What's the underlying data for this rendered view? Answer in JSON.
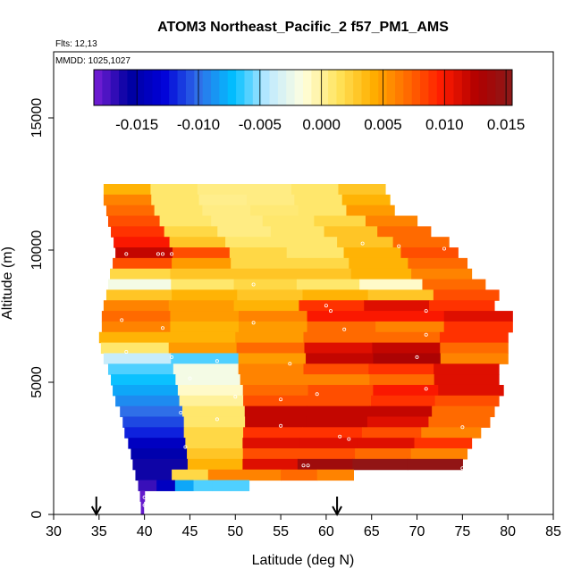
{
  "chart_data": {
    "type": "heatmap",
    "title": "ATOM3 Northeast_Pacific_2 f57_PM1_AMS",
    "flights_text": "Flts: 12,13",
    "mmdd_text": "MMDD: 1025,1027",
    "xlabel": "Latitude (deg N)",
    "ylabel": "Altitude (m)",
    "xlim": [
      30,
      85
    ],
    "ylim": [
      0,
      17500
    ],
    "x_ticks": [
      30,
      35,
      40,
      45,
      50,
      55,
      60,
      65,
      70,
      75,
      80,
      85
    ],
    "x_tick_labels": [
      "30",
      "35",
      "40",
      "45",
      "50",
      "55",
      "60",
      "65",
      "70",
      "75",
      "80",
      "85"
    ],
    "y_ticks": [
      0,
      5000,
      10000,
      15000
    ],
    "y_tick_labels": [
      "0",
      "5000",
      "10000",
      "15000"
    ],
    "colorbar": {
      "range": [
        -0.0185,
        0.0155
      ],
      "ticks": [
        -0.015,
        -0.01,
        -0.005,
        0.0,
        0.005,
        0.01,
        0.015
      ],
      "tick_labels": [
        "-0.015",
        "-0.010",
        "-0.005",
        "0.000",
        "0.005",
        "0.010",
        "0.015"
      ],
      "colors": [
        "#7a1fd6",
        "#0000a0",
        "#0000d8",
        "#2f6fe8",
        "#00bfff",
        "#bfe9ff",
        "#ffffe0",
        "#ffe45c",
        "#ffb000",
        "#ff6a00",
        "#ff1a00",
        "#b00000",
        "#8b1a1a"
      ]
    },
    "arrows_latitude": [
      34.7,
      61.2
    ],
    "bands": [
      {
        "y0": 12100,
        "y1": 12500,
        "x0": 35.5,
        "x1": 66.5,
        "values": [
          0.004,
          0.001,
          0.0005,
          0.0005,
          0.001,
          0.003
        ]
      },
      {
        "y0": 11700,
        "y1": 12100,
        "x0": 35.5,
        "x1": 67.0,
        "values": [
          0.006,
          0.001,
          0.0003,
          0.0005,
          0.001,
          0.004
        ]
      },
      {
        "y0": 11300,
        "y1": 11700,
        "x0": 35.8,
        "x1": 67.5,
        "values": [
          0.007,
          0.001,
          0.0005,
          0.0008,
          0.001,
          0.005
        ]
      },
      {
        "y0": 10900,
        "y1": 11300,
        "x0": 36.0,
        "x1": 70.0,
        "values": [
          0.008,
          0.001,
          0.0005,
          0.001,
          0.002,
          0.006
        ]
      },
      {
        "y0": 10500,
        "y1": 10900,
        "x0": 36.3,
        "x1": 71.5,
        "values": [
          0.009,
          0.002,
          0.0005,
          0.001,
          0.003,
          0.007
        ]
      },
      {
        "y0": 10100,
        "y1": 10500,
        "x0": 36.6,
        "x1": 73.5,
        "values": [
          0.01,
          0.003,
          0.001,
          0.001,
          0.003,
          0.007
        ]
      },
      {
        "y0": 9700,
        "y1": 10100,
        "x0": 36.8,
        "x1": 74.5,
        "values": [
          0.012,
          0.008,
          0.002,
          0.001,
          0.004,
          0.008
        ]
      },
      {
        "y0": 9300,
        "y1": 9700,
        "x0": 36.5,
        "x1": 75.5,
        "values": [
          0.008,
          0.005,
          0.002,
          0.002,
          0.004,
          0.007
        ]
      },
      {
        "y0": 8900,
        "y1": 9300,
        "x0": 36.2,
        "x1": 76.0,
        "values": [
          0.002,
          0.003,
          0.003,
          0.003,
          0.004,
          0.006
        ]
      },
      {
        "y0": 8500,
        "y1": 8900,
        "x0": 36.0,
        "x1": 77.5,
        "values": [
          -0.002,
          0.001,
          0.002,
          0.001,
          -0.001,
          0.007
        ]
      },
      {
        "y0": 8100,
        "y1": 8500,
        "x0": 35.8,
        "x1": 79.0,
        "values": [
          0.003,
          0.004,
          0.003,
          0.004,
          0.003,
          0.008
        ]
      },
      {
        "y0": 7700,
        "y1": 8100,
        "x0": 35.5,
        "x1": 78.5,
        "values": [
          0.006,
          0.005,
          0.004,
          0.009,
          0.011,
          0.009
        ]
      },
      {
        "y0": 7300,
        "y1": 7700,
        "x0": 35.3,
        "x1": 80.5,
        "values": [
          0.007,
          0.005,
          0.006,
          0.01,
          0.01,
          0.011
        ]
      },
      {
        "y0": 6900,
        "y1": 7300,
        "x0": 35.3,
        "x1": 80.5,
        "values": [
          0.006,
          0.004,
          0.005,
          0.007,
          0.006,
          0.009
        ]
      },
      {
        "y0": 6500,
        "y1": 6900,
        "x0": 35.0,
        "x1": 80.0,
        "values": [
          0.004,
          0.004,
          0.005,
          0.007,
          0.007,
          0.009
        ]
      },
      {
        "y0": 6100,
        "y1": 6500,
        "x0": 35.2,
        "x1": 80.0,
        "values": [
          0.001,
          0.005,
          0.007,
          0.011,
          0.012,
          0.007
        ]
      },
      {
        "y0": 5700,
        "y1": 6100,
        "x0": 35.5,
        "x1": 80.0,
        "values": [
          -0.004,
          -0.006,
          0.005,
          0.012,
          0.013,
          0.006
        ]
      },
      {
        "y0": 5300,
        "y1": 5700,
        "x0": 36.0,
        "x1": 79.0,
        "values": [
          -0.006,
          -0.002,
          0.006,
          0.008,
          0.009,
          0.011
        ]
      },
      {
        "y0": 4900,
        "y1": 5300,
        "x0": 36.3,
        "x1": 79.0,
        "values": [
          -0.007,
          -0.002,
          0.006,
          0.006,
          0.007,
          0.011
        ]
      },
      {
        "y0": 4500,
        "y1": 4900,
        "x0": 36.5,
        "x1": 79.5,
        "values": [
          -0.008,
          -0.001,
          0.007,
          0.008,
          0.01,
          0.011
        ]
      },
      {
        "y0": 4100,
        "y1": 4500,
        "x0": 36.8,
        "x1": 79.0,
        "values": [
          -0.009,
          0.0,
          0.008,
          0.008,
          0.009,
          0.008
        ]
      },
      {
        "y0": 3700,
        "y1": 4100,
        "x0": 37.3,
        "x1": 78.5,
        "values": [
          -0.01,
          0.001,
          0.012,
          0.012,
          0.012,
          0.007
        ]
      },
      {
        "y0": 3300,
        "y1": 3700,
        "x0": 37.6,
        "x1": 78.0,
        "values": [
          -0.011,
          0.001,
          0.012,
          0.012,
          0.011,
          0.007
        ]
      },
      {
        "y0": 2900,
        "y1": 3300,
        "x0": 37.8,
        "x1": 77.0,
        "values": [
          -0.012,
          0.002,
          0.009,
          0.009,
          0.008,
          0.006
        ]
      },
      {
        "y0": 2500,
        "y1": 2900,
        "x0": 38.2,
        "x1": 76.0,
        "values": [
          -0.014,
          0.002,
          0.011,
          0.011,
          0.011,
          0.009
        ]
      },
      {
        "y0": 2100,
        "y1": 2500,
        "x0": 38.5,
        "x1": 75.5,
        "values": [
          -0.015,
          0.003,
          0.008,
          0.008,
          0.007,
          0.006
        ]
      },
      {
        "y0": 1700,
        "y1": 2100,
        "x0": 38.7,
        "x1": 75.0,
        "values": [
          -0.016,
          0.004,
          0.011,
          0.014,
          0.015,
          0.015
        ]
      },
      {
        "y0": 1300,
        "y1": 1700,
        "x0": 39.0,
        "x1": 63.0,
        "values": [
          -0.016,
          0.002,
          0.006,
          0.006,
          0.007,
          0.006
        ]
      },
      {
        "y0": 900,
        "y1": 1300,
        "x0": 39.3,
        "x1": 51.5,
        "values": [
          -0.017,
          -0.014,
          -0.008,
          -0.006,
          -0.006,
          -0.006
        ]
      },
      {
        "y0": 500,
        "y1": 900,
        "x0": 39.5,
        "x1": 40.0,
        "values": [
          -0.018
        ]
      },
      {
        "y0": 0,
        "y1": 500,
        "x0": 39.6,
        "x1": 39.9,
        "values": [
          -0.018
        ]
      }
    ],
    "point_markers": [
      [
        38.0,
        9850
      ],
      [
        41.5,
        9850
      ],
      [
        42.0,
        9850
      ],
      [
        43.0,
        9850
      ],
      [
        64.0,
        10250
      ],
      [
        68.0,
        10150
      ],
      [
        73.0,
        10050
      ],
      [
        52.0,
        8700
      ],
      [
        60.0,
        7900
      ],
      [
        60.5,
        7700
      ],
      [
        71.0,
        7700
      ],
      [
        37.5,
        7350
      ],
      [
        42.0,
        7050
      ],
      [
        52.0,
        7250
      ],
      [
        62.0,
        7000
      ],
      [
        71.0,
        6800
      ],
      [
        38.0,
        6150
      ],
      [
        43.0,
        5950
      ],
      [
        56.0,
        5700
      ],
      [
        70.0,
        5950
      ],
      [
        48.0,
        5800
      ],
      [
        45.0,
        5150
      ],
      [
        50.0,
        4450
      ],
      [
        55.0,
        4350
      ],
      [
        59.0,
        4550
      ],
      [
        71.0,
        4750
      ],
      [
        44.0,
        3850
      ],
      [
        48.0,
        3600
      ],
      [
        55.0,
        3350
      ],
      [
        61.5,
        2950
      ],
      [
        62.5,
        2850
      ],
      [
        75.0,
        3300
      ],
      [
        44.5,
        2550
      ],
      [
        57.5,
        1850
      ],
      [
        58.0,
        1850
      ],
      [
        75.0,
        1750
      ],
      [
        40.0,
        650
      ],
      [
        40.0,
        350
      ]
    ]
  }
}
